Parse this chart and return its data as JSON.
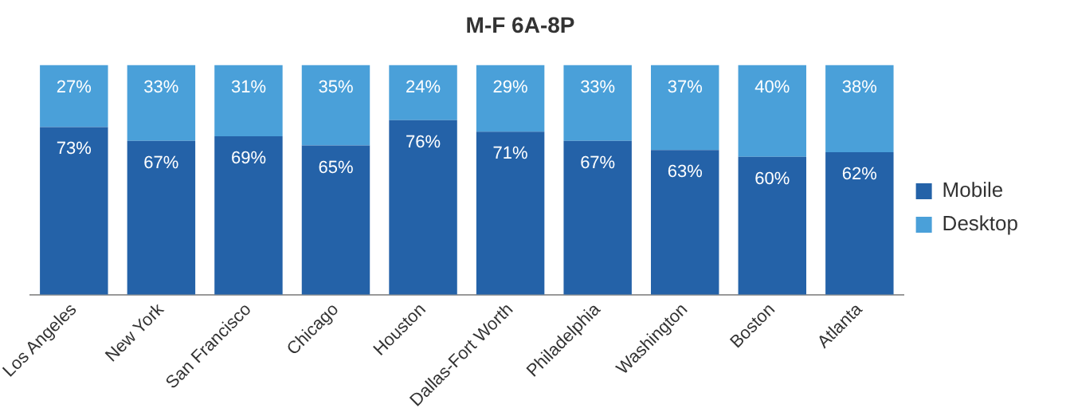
{
  "chart_data": {
    "type": "bar",
    "title": "M-F 6A-8P",
    "stacked": true,
    "categories": [
      "Los Angeles",
      "New York",
      "San Francisco",
      "Chicago",
      "Houston",
      "Dallas-Fort Worth",
      "Philadelphia",
      "Washington",
      "Boston",
      "Atlanta"
    ],
    "series": [
      {
        "name": "Mobile",
        "color": "#2462a8",
        "values": [
          73,
          67,
          69,
          65,
          76,
          71,
          67,
          63,
          60,
          62
        ],
        "value_labels": [
          "73%",
          "67%",
          "69%",
          "65%",
          "76%",
          "71%",
          "67%",
          "63%",
          "60%",
          "62%"
        ]
      },
      {
        "name": "Desktop",
        "color": "#4aa0d9",
        "values": [
          27,
          33,
          31,
          35,
          24,
          29,
          33,
          37,
          40,
          38
        ],
        "value_labels": [
          "27%",
          "33%",
          "31%",
          "35%",
          "24%",
          "29%",
          "33%",
          "37%",
          "40%",
          "38%"
        ]
      }
    ],
    "ylim": [
      0,
      100
    ],
    "tick_labels": "x",
    "grid": false,
    "legend": "right"
  }
}
